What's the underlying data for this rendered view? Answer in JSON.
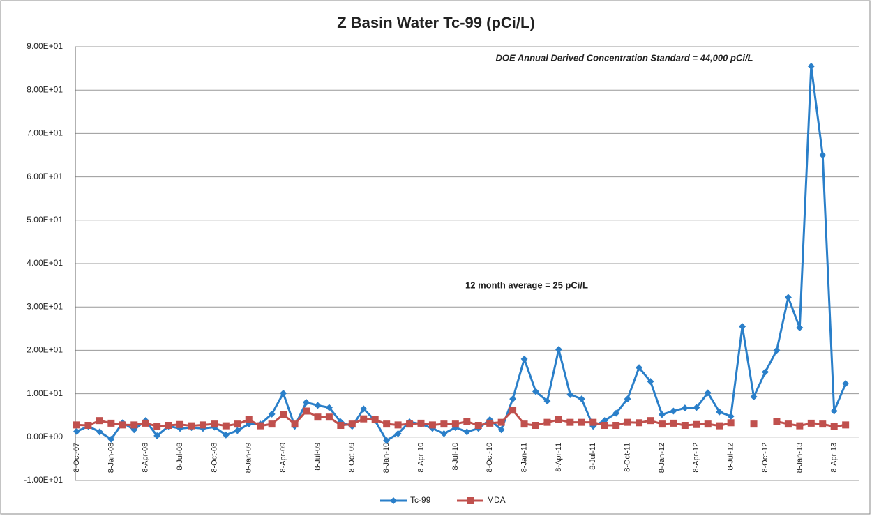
{
  "chart_data": {
    "type": "line",
    "title": "Z Basin Water Tc-99 (pCi/L)",
    "annotations": [
      "DOE  Annual Derived Concentration Standard = 44,000 pCi/L",
      "12 month average  = 25 pCi/L"
    ],
    "categories": [
      "8-Oct-07",
      null,
      null,
      "8-Jan-08",
      null,
      null,
      "8-Apr-08",
      null,
      null,
      "8-Jul-08",
      null,
      null,
      "8-Oct-08",
      null,
      null,
      "8-Jan-09",
      null,
      null,
      "8-Apr-09",
      null,
      null,
      "8-Jul-09",
      null,
      null,
      "8-Oct-09",
      null,
      null,
      "8-Jan-10",
      null,
      null,
      "8-Apr-10",
      null,
      null,
      "8-Jul-10",
      null,
      null,
      "8-Oct-10",
      null,
      null,
      "8-Jan-11",
      null,
      null,
      "8-Apr-11",
      null,
      null,
      "8-Jul-11",
      null,
      null,
      "8-Oct-11",
      null,
      null,
      "8-Jan-12",
      null,
      null,
      "8-Apr-12",
      null,
      null,
      "8-Jul-12",
      null,
      null,
      "8-Oct-12",
      null,
      null,
      "8-Jan-13",
      null,
      null,
      "8-Apr-13",
      null,
      null
    ],
    "series": [
      {
        "name": "Tc-99",
        "color": "#2a7fc9",
        "marker": "diamond",
        "values": [
          1.3,
          2.5,
          1.2,
          -0.5,
          3.3,
          1.7,
          3.8,
          0.3,
          2.5,
          2.0,
          2.2,
          2.0,
          2.3,
          0.5,
          1.5,
          3.0,
          3.0,
          5.3,
          10.1,
          2.5,
          8.0,
          7.3,
          6.8,
          3.5,
          2.5,
          6.5,
          3.8,
          -0.8,
          0.8,
          3.5,
          3.0,
          2.0,
          0.8,
          2.2,
          1.2,
          2.0,
          4.0,
          1.7,
          8.8,
          18.0,
          10.5,
          8.3,
          20.2,
          9.8,
          8.8,
          2.5,
          3.8,
          5.5,
          8.8,
          16.0,
          12.8,
          5.2,
          6.0,
          6.7,
          6.8,
          10.2,
          5.8,
          4.8,
          25.5,
          9.3,
          15.0,
          20.0,
          32.2,
          25.2,
          85.5,
          65.0,
          6.0,
          12.3,
          null
        ]
      },
      {
        "name": "MDA",
        "color": "#c0504d",
        "marker": "square",
        "values": [
          2.8,
          2.7,
          3.8,
          3.2,
          2.8,
          2.8,
          3.2,
          2.5,
          2.7,
          2.9,
          2.6,
          2.8,
          3.0,
          2.6,
          3.0,
          4.0,
          2.6,
          3.0,
          5.2,
          3.0,
          6.0,
          4.6,
          4.6,
          2.7,
          3.0,
          4.2,
          4.0,
          3.0,
          2.8,
          3.0,
          3.2,
          2.8,
          3.0,
          3.0,
          3.6,
          2.7,
          3.2,
          3.4,
          6.2,
          3.0,
          2.7,
          3.4,
          4.0,
          3.4,
          3.4,
          3.4,
          2.7,
          2.7,
          3.4,
          3.3,
          3.8,
          3.0,
          3.2,
          2.7,
          2.9,
          3.0,
          2.6,
          3.3,
          null,
          3.0,
          null,
          3.6,
          3.0,
          2.6,
          3.2,
          3.0,
          2.4,
          2.8,
          null
        ]
      }
    ],
    "ylim": [
      -10,
      90
    ],
    "yticks": [
      {
        "value": -10,
        "label": "-1.00E+01"
      },
      {
        "value": 0,
        "label": "0.00E+00"
      },
      {
        "value": 10,
        "label": "1.00E+01"
      },
      {
        "value": 20,
        "label": "2.00E+01"
      },
      {
        "value": 30,
        "label": "3.00E+01"
      },
      {
        "value": 40,
        "label": "4.00E+01"
      },
      {
        "value": 50,
        "label": "5.00E+01"
      },
      {
        "value": 60,
        "label": "6.00E+01"
      },
      {
        "value": 70,
        "label": "7.00E+01"
      },
      {
        "value": 80,
        "label": "8.00E+01"
      },
      {
        "value": 90,
        "label": "9.00E+01"
      }
    ],
    "grid": true,
    "legend": "bottom"
  }
}
